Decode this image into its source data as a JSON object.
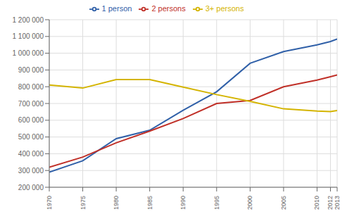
{
  "chart_data": {
    "type": "line",
    "x": [
      1970,
      1975,
      1980,
      1985,
      1990,
      1995,
      2000,
      2005,
      2010,
      2012,
      2013
    ],
    "series": [
      {
        "name": "1 person",
        "color": "#3060a8",
        "values": [
          290000,
          358000,
          490000,
          540000,
          660000,
          770000,
          940000,
          1010000,
          1050000,
          1070000,
          1085000
        ]
      },
      {
        "name": "2 persons",
        "color": "#c03028",
        "values": [
          320000,
          380000,
          465000,
          535000,
          610000,
          700000,
          718000,
          800000,
          840000,
          860000,
          870000
        ]
      },
      {
        "name": "3+ persons",
        "color": "#d4b400",
        "values": [
          810000,
          792000,
          843000,
          843000,
          798000,
          753000,
          713000,
          668000,
          655000,
          652000,
          658000
        ]
      }
    ],
    "xlim": [
      1970,
      2013
    ],
    "xticks": [
      1970,
      1975,
      1980,
      1985,
      1990,
      1995,
      2000,
      2005,
      2010,
      2012,
      2013
    ],
    "ylim": [
      200000,
      1200000
    ],
    "yticks": [
      {
        "value": 200000,
        "label": "200 000"
      },
      {
        "value": 300000,
        "label": "300 000"
      },
      {
        "value": 400000,
        "label": "400 000"
      },
      {
        "value": 500000,
        "label": "500 000"
      },
      {
        "value": 600000,
        "label": "600 000"
      },
      {
        "value": 700000,
        "label": "700 000"
      },
      {
        "value": 800000,
        "label": "800 000"
      },
      {
        "value": 900000,
        "label": "900 000"
      },
      {
        "value": 1000000,
        "label": "1 000 000"
      },
      {
        "value": 1100000,
        "label": "1 100 000"
      },
      {
        "value": 1200000,
        "label": "1 200 000"
      }
    ],
    "grid": true,
    "legend": "top"
  }
}
